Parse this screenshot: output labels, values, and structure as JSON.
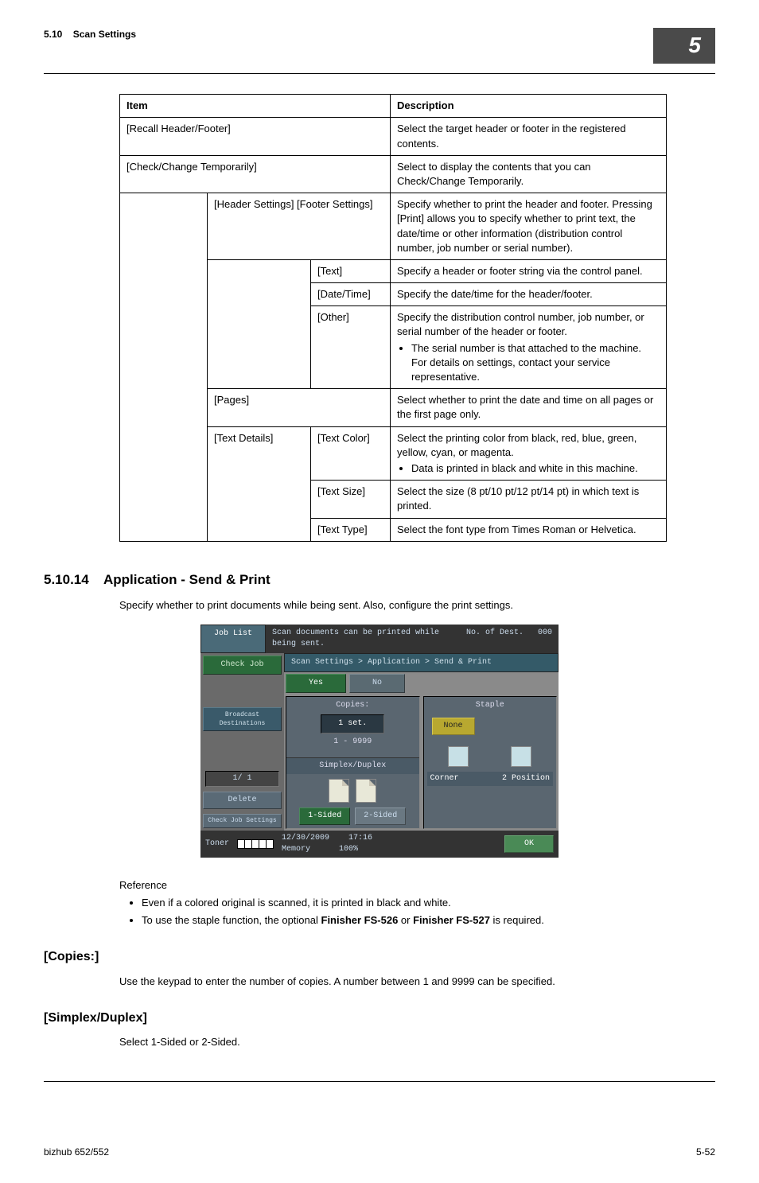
{
  "header": {
    "section_no": "5.10",
    "section_title": "Scan Settings",
    "chapter_badge": "5"
  },
  "table": {
    "columns": {
      "item": "Item",
      "description": "Description"
    },
    "rows": {
      "recall": {
        "item": "[Recall Header/Footer]",
        "desc": "Select the target header or footer in the registered contents."
      },
      "check_change": {
        "item": "[Check/Change Temporarily]",
        "desc": "Select to display the contents that you can Check/Change Temporarily."
      },
      "header_footer": {
        "item": "[Header Settings] [Footer Settings]",
        "desc": "Specify whether to print the header and footer. Pressing [Print] allows you to specify whether to print text, the date/time or other information (distribution control number, job number or serial number)."
      },
      "text": {
        "item": "[Text]",
        "desc": "Specify a header or footer string via the control panel."
      },
      "datetime": {
        "item": "[Date/Time]",
        "desc": "Specify the date/time for the header/footer."
      },
      "other": {
        "item": "[Other]",
        "desc": "Specify the distribution control number, job number, or serial number of the header or footer.",
        "bullet": "The serial number is that attached to the machine. For details on settings, contact your service representative."
      },
      "pages": {
        "item": "[Pages]",
        "desc": "Select whether to print the date and time on all pages or the first page only."
      },
      "textdetails": {
        "item": "[Text Details]"
      },
      "textcolor": {
        "item": "[Text Color]",
        "desc": "Select the printing color from black, red, blue, green, yellow, cyan, or magenta.",
        "bullet": "Data is printed in black and white in this machine."
      },
      "textsize": {
        "item": "[Text Size]",
        "desc": "Select the size (8 pt/10 pt/12 pt/14 pt) in which text is printed."
      },
      "texttype": {
        "item": "[Text Type]",
        "desc": "Select the font type from Times Roman or Helvetica."
      }
    }
  },
  "section_app": {
    "number": "5.10.14",
    "title": "Application - Send & Print",
    "intro": "Specify whether to print documents while being sent. Also, configure the print settings."
  },
  "screenshot": {
    "job_list": "Job List",
    "msg": "Scan documents can be printed while being sent.",
    "dest_label": "No. of Dest.",
    "dest_count": "000",
    "check_job": "Check Job",
    "broadcast": "Broadcast Destinations",
    "counter": "1/  1",
    "delete": "Delete",
    "check_settings": "Check Job Settings",
    "breadcrumb": "Scan Settings > Application > Send & Print",
    "tab_yes": "Yes",
    "tab_no": "No",
    "copies_label": "Copies:",
    "copies_value": "1 set.",
    "copies_range": "1   -   9999",
    "simplex_label": "Simplex/Duplex",
    "one_sided": "1-Sided",
    "two_sided": "2-Sided",
    "staple_label": "Staple",
    "staple_none": "None",
    "staple_corner": "Corner",
    "staple_2pos": "2 Position",
    "toner": "Toner",
    "date": "12/30/2009",
    "time": "17:16",
    "memory": "Memory",
    "memory_pct": "100%",
    "ok": "OK"
  },
  "reference": {
    "title": "Reference",
    "items": [
      "Even if a colored original is scanned, it is printed in black and white.",
      "To use the staple function, the optional <b>Finisher FS-526</b> or <b>Finisher FS-527</b> is required."
    ]
  },
  "copies": {
    "title": "[Copies:]",
    "text": "Use the keypad to enter the number of copies. A number between 1 and 9999 can be specified."
  },
  "simplex": {
    "title": "[Simplex/Duplex]",
    "text": "Select 1-Sided or 2-Sided."
  },
  "footer": {
    "left": "bizhub 652/552",
    "right": "5-52"
  }
}
